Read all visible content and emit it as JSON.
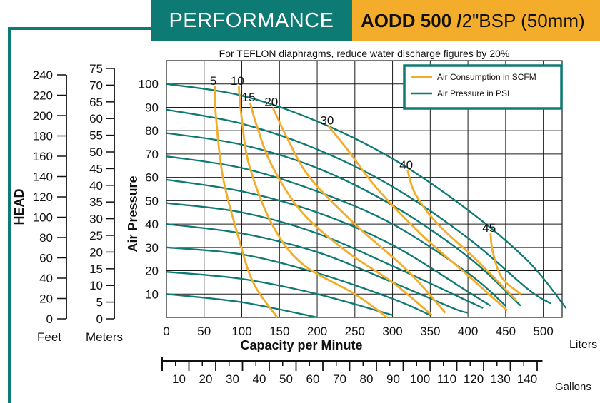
{
  "header": {
    "title": "PERFORMANCE",
    "model_bold": "AODD 500 /",
    "model_rest": " 2\"BSP (50mm)"
  },
  "colors": {
    "teal": "#0e7a74",
    "orange": "#f4ad2a",
    "grid": "#1a1a1a"
  },
  "chart_data": {
    "type": "line",
    "note": "For TEFLON diaphragms, reduce water discharge figures by 20%",
    "xlabel": "Capacity per Minute",
    "x_unit": "Liters",
    "x_secondary_unit": "Gallons",
    "ylabel": "Air Pressure",
    "head_label": "HEAD",
    "feet_label": "Feet",
    "meters_label": "Meters",
    "xlim": [
      0,
      525
    ],
    "ylim": [
      0,
      110
    ],
    "x_ticks": [
      0,
      50,
      100,
      150,
      200,
      250,
      300,
      350,
      400,
      450,
      500
    ],
    "y_ticks": [
      10,
      20,
      30,
      40,
      50,
      60,
      70,
      80,
      90,
      100
    ],
    "gallon_ticks": [
      10,
      20,
      30,
      40,
      50,
      60,
      70,
      80,
      90,
      100,
      110,
      120,
      130,
      140
    ],
    "feet_ticks": [
      0,
      20,
      40,
      60,
      80,
      100,
      120,
      140,
      160,
      180,
      200,
      220,
      240
    ],
    "meter_ticks": [
      0,
      5,
      10,
      15,
      20,
      25,
      30,
      35,
      40,
      45,
      50,
      55,
      60,
      65,
      70,
      75
    ],
    "legend": [
      {
        "label": "Air Consumption in SCFM",
        "color": "#f4ad2a"
      },
      {
        "label": "Air Pressure in PSI",
        "color": "#0e7a74"
      }
    ],
    "legend_position": "top-right",
    "pressure_curves": [
      {
        "name": "100 PSI",
        "x": [
          0,
          100,
          200,
          300,
          400,
          480,
          530
        ],
        "y": [
          100,
          95,
          84,
          68,
          46,
          24,
          4
        ]
      },
      {
        "name": "90 PSI",
        "x": [
          0,
          100,
          200,
          300,
          400,
          480,
          510
        ],
        "y": [
          89,
          83,
          72,
          56,
          34,
          12,
          6
        ]
      },
      {
        "name": "80 PSI",
        "x": [
          0,
          100,
          200,
          300,
          400,
          470
        ],
        "y": [
          79,
          74,
          64,
          48,
          26,
          5
        ]
      },
      {
        "name": "70 PSI",
        "x": [
          0,
          100,
          200,
          300,
          400,
          450
        ],
        "y": [
          69,
          64,
          54,
          40,
          19,
          5
        ]
      },
      {
        "name": "60 PSI",
        "x": [
          0,
          100,
          200,
          300,
          400,
          430
        ],
        "y": [
          59,
          54,
          45,
          31,
          11,
          5
        ]
      },
      {
        "name": "50 PSI",
        "x": [
          0,
          100,
          200,
          300,
          400,
          420
        ],
        "y": [
          49,
          45,
          36,
          22,
          7,
          4
        ]
      },
      {
        "name": "40 PSI",
        "x": [
          0,
          100,
          200,
          300,
          380,
          400
        ],
        "y": [
          40,
          36,
          28,
          15,
          4,
          2
        ]
      },
      {
        "name": "30 PSI",
        "x": [
          0,
          100,
          200,
          300,
          350
        ],
        "y": [
          30,
          27,
          19,
          8,
          1
        ]
      },
      {
        "name": "20 PSI",
        "x": [
          0,
          100,
          200,
          300
        ],
        "y": [
          19.5,
          16.5,
          10,
          1
        ]
      },
      {
        "name": "10 PSI",
        "x": [
          0,
          100,
          200
        ],
        "y": [
          10,
          6.5,
          0
        ]
      }
    ],
    "air_consumption_curves": [
      {
        "name": "5",
        "x": [
          64,
          66,
          75,
          95,
          115,
          147
        ],
        "y": [
          99,
          85,
          60,
          35,
          15,
          0
        ]
      },
      {
        "name": "10",
        "x": [
          96,
          100,
          110,
          140,
          180,
          250,
          293
        ],
        "y": [
          99,
          85,
          65,
          40,
          23,
          10,
          0
        ]
      },
      {
        "name": "15",
        "x": [
          111,
          120,
          140,
          180,
          240,
          300,
          352
        ],
        "y": [
          92,
          82,
          65,
          45,
          28,
          15,
          1
        ]
      },
      {
        "name": "20",
        "x": [
          141,
          160,
          190,
          250,
          320,
          370
        ],
        "y": [
          90,
          77,
          60,
          40,
          20,
          2
        ]
      },
      {
        "name": "30",
        "x": [
          215,
          240,
          280,
          340,
          400,
          452
        ],
        "y": [
          82,
          72,
          55,
          35,
          18,
          3
        ]
      },
      {
        "name": "40",
        "x": [
          320,
          330,
          360,
          410,
          465
        ],
        "y": [
          63,
          53,
          40,
          25,
          7
        ]
      },
      {
        "name": "45",
        "x": [
          430,
          433,
          445,
          470
        ],
        "y": [
          36,
          28,
          17,
          10
        ]
      }
    ]
  }
}
